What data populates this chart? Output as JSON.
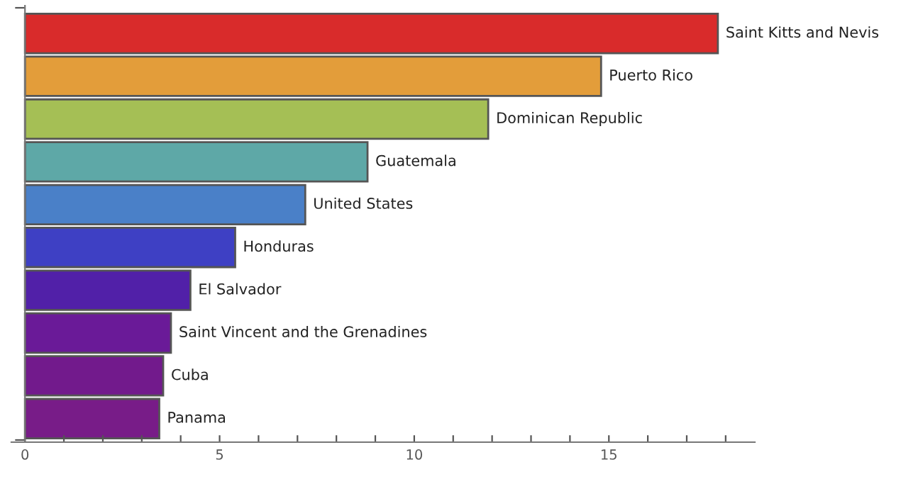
{
  "chart_data": {
    "type": "bar",
    "orientation": "horizontal",
    "categories": [
      null,
      null,
      null,
      null,
      null,
      null,
      null,
      null,
      null,
      null
    ],
    "value_labels": [
      "Saint Kitts and Nevis",
      "Puerto Rico",
      "Dominican Republic",
      "Guatemala",
      "United States",
      "Honduras",
      "El Salvador",
      "Saint Vincent and the Grenadines",
      "Cuba",
      "Panama"
    ],
    "values": [
      17.8,
      14.8,
      11.9,
      8.8,
      7.2,
      5.4,
      4.25,
      3.75,
      3.55,
      3.45
    ],
    "colors": [
      "#d92b2b",
      "#e39d3a",
      "#a5bf55",
      "#5ea8a7",
      "#4a80c8",
      "#3e40c4",
      "#5120a8",
      "#6a1a98",
      "#721a8c",
      "#781c88"
    ],
    "xlim": [
      -0.35,
      18.75
    ],
    "xticks": [
      0,
      {
        "value": 1,
        "label": null
      },
      {
        "value": 2,
        "label": null
      },
      {
        "value": 3,
        "label": null
      },
      {
        "value": 4,
        "label": null
      },
      5,
      {
        "value": 6,
        "label": null
      },
      {
        "value": 7,
        "label": null
      },
      {
        "value": 8,
        "label": null
      },
      {
        "value": 9,
        "label": null
      },
      10,
      {
        "value": 11,
        "label": null
      },
      {
        "value": 12,
        "label": null
      },
      {
        "value": 13,
        "label": null
      },
      {
        "value": 14,
        "label": null
      },
      15,
      {
        "value": 16,
        "label": null
      },
      {
        "value": 17,
        "label": null
      },
      {
        "value": 18,
        "label": null
      }
    ],
    "tick_labels": "x",
    "legend": false
  }
}
